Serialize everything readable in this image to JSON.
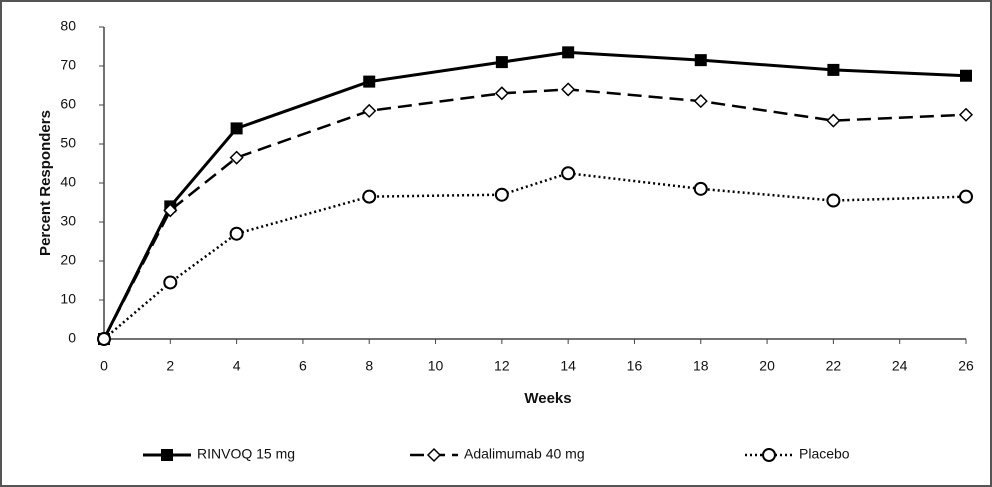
{
  "chart_data": {
    "type": "line",
    "x_label": "Weeks",
    "y_label": "Percent Responders",
    "xlim": [
      0,
      26
    ],
    "xticks": [
      0,
      2,
      4,
      6,
      8,
      10,
      12,
      14,
      16,
      18,
      20,
      22,
      24,
      26
    ],
    "ylim": [
      0,
      80
    ],
    "yticks": [
      0,
      10,
      20,
      30,
      40,
      50,
      60,
      70,
      80
    ],
    "grid": false,
    "series": [
      {
        "name": "RINVOQ 15 mg",
        "color": "#000000",
        "marker": "square",
        "dash": "solid",
        "x": [
          0,
          2,
          4,
          8,
          12,
          14,
          18,
          22,
          26
        ],
        "values": [
          0,
          34,
          54,
          66,
          71,
          73.5,
          71.5,
          69,
          67.5
        ]
      },
      {
        "name": "Adalimumab 40 mg",
        "color": "#000000",
        "marker": "diamond",
        "dash": "dashed",
        "x": [
          0,
          2,
          4,
          8,
          12,
          14,
          18,
          22,
          26
        ],
        "values": [
          0,
          33,
          46.5,
          58.5,
          63,
          64,
          61,
          56,
          57.5
        ]
      },
      {
        "name": "Placebo",
        "color": "#000000",
        "marker": "circle",
        "dash": "dotted",
        "x": [
          0,
          2,
          4,
          8,
          12,
          14,
          18,
          22,
          26
        ],
        "values": [
          0,
          14.5,
          27,
          36.5,
          37,
          42.5,
          38.5,
          35.5,
          36.5
        ]
      }
    ]
  }
}
